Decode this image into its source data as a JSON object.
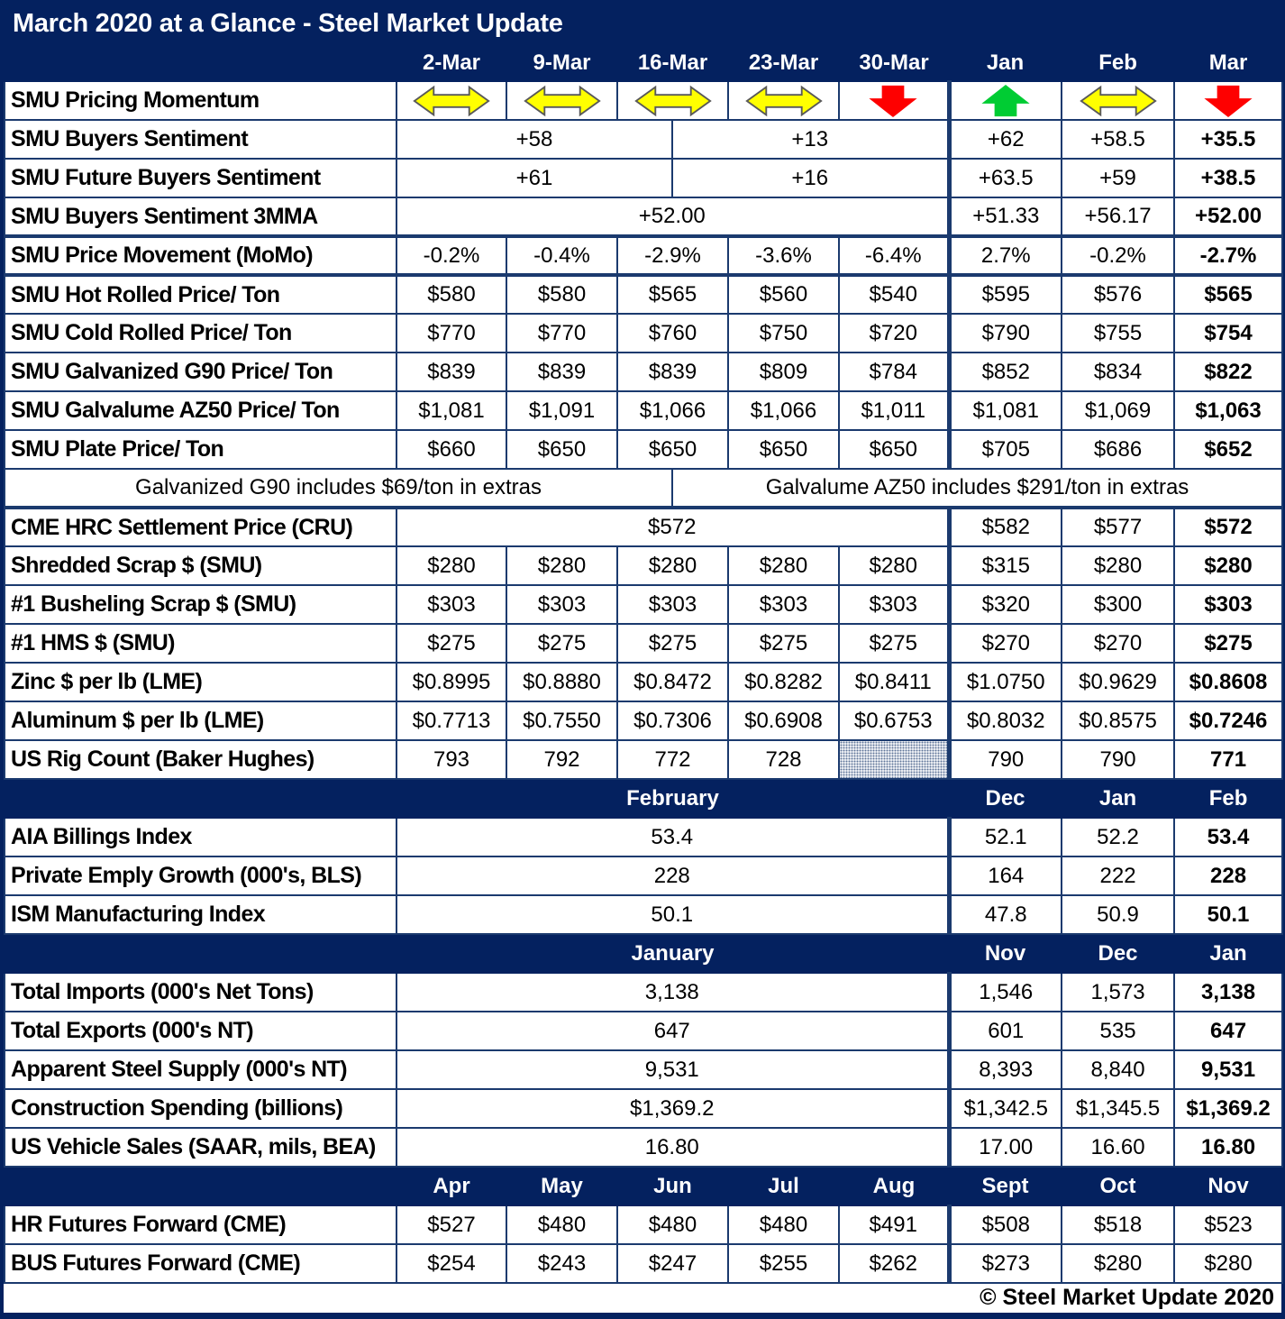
{
  "title": "March 2020 at a Glance - Steel Market Update",
  "footer_copyright": "© Steel Market Update 2020",
  "colors": {
    "navy_header": "#04215f",
    "gridline": "#1b3a6e",
    "arrow_yellow": "#ffff00",
    "arrow_yellow_outline": "#595959",
    "arrow_red": "#fe0000",
    "arrow_green": "#00cc33"
  },
  "icons": {
    "dd": "left-right-arrow-icon",
    "up": "up-arrow-icon",
    "dn": "down-arrow-icon",
    "hx": "hatched-empty-cell"
  },
  "columns": [
    "2-Mar",
    "9-Mar",
    "16-Mar",
    "23-Mar",
    "30-Mar",
    "Jan",
    "Feb",
    "Mar"
  ],
  "rows": [
    {
      "label": "SMU Pricing Momentum",
      "cells": [
        {
          "k": "dd",
          "s": 2
        },
        {
          "k": "dd",
          "s": 2
        },
        {
          "k": "dd",
          "s": 2
        },
        {
          "k": "dd",
          "s": 2
        },
        {
          "k": "dn",
          "s": 2
        },
        {
          "k": "up",
          "s": 2,
          "m": 1
        },
        {
          "k": "dd",
          "s": 2
        },
        {
          "k": "dn",
          "s": 2
        }
      ]
    },
    {
      "label": "SMU Buyers Sentiment",
      "cells": [
        {
          "t": "+58",
          "s": 5
        },
        {
          "t": "+13",
          "s": 5
        },
        {
          "t": "+62",
          "s": 2,
          "m": 1
        },
        {
          "t": "+58.5",
          "s": 2
        },
        {
          "t": "+35.5",
          "s": 2,
          "b": 1
        }
      ]
    },
    {
      "label": "SMU Future Buyers Sentiment",
      "cells": [
        {
          "t": "+61",
          "s": 5
        },
        {
          "t": "+16",
          "s": 5
        },
        {
          "t": "+63.5",
          "s": 2,
          "m": 1
        },
        {
          "t": "+59",
          "s": 2
        },
        {
          "t": "+38.5",
          "s": 2,
          "b": 1
        }
      ]
    },
    {
      "label": "SMU Buyers Sentiment 3MMA",
      "cells": [
        {
          "t": "+52.00",
          "s": 10
        },
        {
          "t": "+51.33",
          "s": 2,
          "m": 1
        },
        {
          "t": "+56.17",
          "s": 2
        },
        {
          "t": "+52.00",
          "s": 2,
          "b": 1
        }
      ]
    },
    {
      "label": "SMU Price Movement (MoMo)",
      "thickTop": true,
      "cells": [
        {
          "t": "-0.2%",
          "s": 2
        },
        {
          "t": "-0.4%",
          "s": 2
        },
        {
          "t": "-2.9%",
          "s": 2
        },
        {
          "t": "-3.6%",
          "s": 2
        },
        {
          "t": "-6.4%",
          "s": 2
        },
        {
          "t": "2.7%",
          "s": 2,
          "m": 1
        },
        {
          "t": "-0.2%",
          "s": 2
        },
        {
          "t": "-2.7%",
          "s": 2,
          "b": 1
        }
      ]
    },
    {
      "label": "SMU Hot Rolled Price/ Ton",
      "thickTop": true,
      "cells": [
        {
          "t": "$580",
          "s": 2
        },
        {
          "t": "$580",
          "s": 2
        },
        {
          "t": "$565",
          "s": 2
        },
        {
          "t": "$560",
          "s": 2
        },
        {
          "t": "$540",
          "s": 2
        },
        {
          "t": "$595",
          "s": 2,
          "m": 1
        },
        {
          "t": "$576",
          "s": 2
        },
        {
          "t": "$565",
          "s": 2,
          "b": 1
        }
      ]
    },
    {
      "label": "SMU Cold Rolled Price/ Ton",
      "cells": [
        {
          "t": "$770",
          "s": 2
        },
        {
          "t": "$770",
          "s": 2
        },
        {
          "t": "$760",
          "s": 2
        },
        {
          "t": "$750",
          "s": 2
        },
        {
          "t": "$720",
          "s": 2
        },
        {
          "t": "$790",
          "s": 2,
          "m": 1
        },
        {
          "t": "$755",
          "s": 2
        },
        {
          "t": "$754",
          "s": 2,
          "b": 1
        }
      ]
    },
    {
      "label": "SMU Galvanized G90 Price/ Ton",
      "cells": [
        {
          "t": "$839",
          "s": 2
        },
        {
          "t": "$839",
          "s": 2
        },
        {
          "t": "$839",
          "s": 2
        },
        {
          "t": "$809",
          "s": 2
        },
        {
          "t": "$784",
          "s": 2
        },
        {
          "t": "$852",
          "s": 2,
          "m": 1
        },
        {
          "t": "$834",
          "s": 2
        },
        {
          "t": "$822",
          "s": 2,
          "b": 1
        }
      ]
    },
    {
      "label": "SMU Galvalume AZ50 Price/ Ton",
      "cells": [
        {
          "t": "$1,081",
          "s": 2
        },
        {
          "t": "$1,091",
          "s": 2
        },
        {
          "t": "$1,066",
          "s": 2
        },
        {
          "t": "$1,066",
          "s": 2
        },
        {
          "t": "$1,011",
          "s": 2
        },
        {
          "t": "$1,081",
          "s": 2,
          "m": 1
        },
        {
          "t": "$1,069",
          "s": 2
        },
        {
          "t": "$1,063",
          "s": 2,
          "b": 1
        }
      ]
    },
    {
      "label": "SMU Plate Price/ Ton",
      "cells": [
        {
          "t": "$660",
          "s": 2
        },
        {
          "t": "$650",
          "s": 2
        },
        {
          "t": "$650",
          "s": 2
        },
        {
          "t": "$650",
          "s": 2
        },
        {
          "t": "$650",
          "s": 2
        },
        {
          "t": "$705",
          "s": 2,
          "m": 1
        },
        {
          "t": "$686",
          "s": 2
        },
        {
          "t": "$652",
          "s": 2,
          "b": 1
        }
      ]
    },
    {
      "type": "note",
      "cells": [
        {
          "t": "Galvanized G90 includes $69/ton in extras",
          "s": 6
        },
        {
          "t": "Galvalume AZ50 includes $291/ton in extras",
          "s": 11
        }
      ]
    },
    {
      "label": "CME HRC Settlement Price (CRU)",
      "thickTop": true,
      "cells": [
        {
          "t": "$572",
          "s": 10
        },
        {
          "t": "$582",
          "s": 2,
          "m": 1
        },
        {
          "t": "$577",
          "s": 2
        },
        {
          "t": "$572",
          "s": 2,
          "b": 1
        }
      ]
    },
    {
      "label": "Shredded Scrap $ (SMU)",
      "cells": [
        {
          "t": "$280",
          "s": 2
        },
        {
          "t": "$280",
          "s": 2
        },
        {
          "t": "$280",
          "s": 2
        },
        {
          "t": "$280",
          "s": 2
        },
        {
          "t": "$280",
          "s": 2
        },
        {
          "t": "$315",
          "s": 2,
          "m": 1
        },
        {
          "t": "$280",
          "s": 2
        },
        {
          "t": "$280",
          "s": 2,
          "b": 1
        }
      ]
    },
    {
      "label": "#1 Busheling Scrap $ (SMU)",
      "cells": [
        {
          "t": "$303",
          "s": 2
        },
        {
          "t": "$303",
          "s": 2
        },
        {
          "t": "$303",
          "s": 2
        },
        {
          "t": "$303",
          "s": 2
        },
        {
          "t": "$303",
          "s": 2
        },
        {
          "t": "$320",
          "s": 2,
          "m": 1
        },
        {
          "t": "$300",
          "s": 2
        },
        {
          "t": "$303",
          "s": 2,
          "b": 1
        }
      ]
    },
    {
      "label": "#1 HMS $ (SMU)",
      "cells": [
        {
          "t": "$275",
          "s": 2
        },
        {
          "t": "$275",
          "s": 2
        },
        {
          "t": "$275",
          "s": 2
        },
        {
          "t": "$275",
          "s": 2
        },
        {
          "t": "$275",
          "s": 2
        },
        {
          "t": "$270",
          "s": 2,
          "m": 1
        },
        {
          "t": "$270",
          "s": 2
        },
        {
          "t": "$275",
          "s": 2,
          "b": 1
        }
      ]
    },
    {
      "label": "Zinc $ per lb (LME)",
      "cells": [
        {
          "t": "$0.8995",
          "s": 2
        },
        {
          "t": "$0.8880",
          "s": 2
        },
        {
          "t": "$0.8472",
          "s": 2
        },
        {
          "t": "$0.8282",
          "s": 2
        },
        {
          "t": "$0.8411",
          "s": 2
        },
        {
          "t": "$1.0750",
          "s": 2,
          "m": 1
        },
        {
          "t": "$0.9629",
          "s": 2
        },
        {
          "t": "$0.8608",
          "s": 2,
          "b": 1
        }
      ]
    },
    {
      "label": "Aluminum $ per lb (LME)",
      "cells": [
        {
          "t": "$0.7713",
          "s": 2
        },
        {
          "t": "$0.7550",
          "s": 2
        },
        {
          "t": "$0.7306",
          "s": 2
        },
        {
          "t": "$0.6908",
          "s": 2
        },
        {
          "t": "$0.6753",
          "s": 2
        },
        {
          "t": "$0.8032",
          "s": 2,
          "m": 1
        },
        {
          "t": "$0.8575",
          "s": 2
        },
        {
          "t": "$0.7246",
          "s": 2,
          "b": 1
        }
      ]
    },
    {
      "label": "US Rig Count (Baker Hughes)",
      "cells": [
        {
          "t": "793",
          "s": 2
        },
        {
          "t": "792",
          "s": 2
        },
        {
          "t": "772",
          "s": 2
        },
        {
          "t": "728",
          "s": 2
        },
        {
          "k": "hx",
          "s": 2
        },
        {
          "t": "790",
          "s": 2,
          "m": 1
        },
        {
          "t": "790",
          "s": 2
        },
        {
          "t": "771",
          "s": 2,
          "b": 1
        }
      ]
    },
    {
      "type": "sub",
      "cells": [
        {
          "t": "February",
          "s": 10
        },
        {
          "t": "Dec",
          "s": 2
        },
        {
          "t": "Jan",
          "s": 2
        },
        {
          "t": "Feb",
          "s": 2
        }
      ]
    },
    {
      "label": "AIA Billings Index",
      "cells": [
        {
          "t": "53.4",
          "s": 10
        },
        {
          "t": "52.1",
          "s": 2,
          "m": 1
        },
        {
          "t": "52.2",
          "s": 2
        },
        {
          "t": "53.4",
          "s": 2,
          "b": 1
        }
      ]
    },
    {
      "label": "Private Emply Growth (000's, BLS)",
      "cells": [
        {
          "t": "228",
          "s": 10
        },
        {
          "t": "164",
          "s": 2,
          "m": 1
        },
        {
          "t": "222",
          "s": 2
        },
        {
          "t": "228",
          "s": 2,
          "b": 1
        }
      ]
    },
    {
      "label": "ISM Manufacturing Index",
      "cells": [
        {
          "t": "50.1",
          "s": 10
        },
        {
          "t": "47.8",
          "s": 2,
          "m": 1
        },
        {
          "t": "50.9",
          "s": 2
        },
        {
          "t": "50.1",
          "s": 2,
          "b": 1
        }
      ]
    },
    {
      "type": "sub",
      "cells": [
        {
          "t": "January",
          "s": 10
        },
        {
          "t": "Nov",
          "s": 2
        },
        {
          "t": "Dec",
          "s": 2
        },
        {
          "t": "Jan",
          "s": 2
        }
      ]
    },
    {
      "label": "Total Imports (000's Net Tons)",
      "cells": [
        {
          "t": "3,138",
          "s": 10
        },
        {
          "t": "1,546",
          "s": 2,
          "m": 1
        },
        {
          "t": "1,573",
          "s": 2
        },
        {
          "t": "3,138",
          "s": 2,
          "b": 1
        }
      ]
    },
    {
      "label": "Total Exports (000's NT)",
      "cells": [
        {
          "t": "647",
          "s": 10
        },
        {
          "t": "601",
          "s": 2,
          "m": 1
        },
        {
          "t": "535",
          "s": 2
        },
        {
          "t": "647",
          "s": 2,
          "b": 1
        }
      ]
    },
    {
      "label": "Apparent Steel Supply (000's NT)",
      "cells": [
        {
          "t": "9,531",
          "s": 10
        },
        {
          "t": "8,393",
          "s": 2,
          "m": 1
        },
        {
          "t": "8,840",
          "s": 2
        },
        {
          "t": "9,531",
          "s": 2,
          "b": 1
        }
      ]
    },
    {
      "label": "Construction Spending (billions)",
      "cells": [
        {
          "t": "$1,369.2",
          "s": 10
        },
        {
          "t": "$1,342.5",
          "s": 2,
          "m": 1
        },
        {
          "t": "$1,345.5",
          "s": 2
        },
        {
          "t": "$1,369.2",
          "s": 2,
          "b": 1
        }
      ]
    },
    {
      "label": "US Vehicle Sales (SAAR, mils, BEA)",
      "cells": [
        {
          "t": "16.80",
          "s": 10
        },
        {
          "t": "17.00",
          "s": 2,
          "m": 1
        },
        {
          "t": "16.60",
          "s": 2
        },
        {
          "t": "16.80",
          "s": 2,
          "b": 1
        }
      ]
    },
    {
      "type": "sub",
      "cells": [
        {
          "t": "Apr",
          "s": 2
        },
        {
          "t": "May",
          "s": 2
        },
        {
          "t": "Jun",
          "s": 2
        },
        {
          "t": "Jul",
          "s": 2
        },
        {
          "t": "Aug",
          "s": 2
        },
        {
          "t": "Sept",
          "s": 2
        },
        {
          "t": "Oct",
          "s": 2
        },
        {
          "t": "Nov",
          "s": 2
        }
      ]
    },
    {
      "label": "HR Futures Forward (CME)",
      "cells": [
        {
          "t": "$527",
          "s": 2
        },
        {
          "t": "$480",
          "s": 2
        },
        {
          "t": "$480",
          "s": 2
        },
        {
          "t": "$480",
          "s": 2
        },
        {
          "t": "$491",
          "s": 2
        },
        {
          "t": "$508",
          "s": 2,
          "m": 1
        },
        {
          "t": "$518",
          "s": 2
        },
        {
          "t": "$523",
          "s": 2
        }
      ]
    },
    {
      "label": "BUS Futures Forward (CME)",
      "cells": [
        {
          "t": "$254",
          "s": 2
        },
        {
          "t": "$243",
          "s": 2
        },
        {
          "t": "$247",
          "s": 2
        },
        {
          "t": "$255",
          "s": 2
        },
        {
          "t": "$262",
          "s": 2
        },
        {
          "t": "$273",
          "s": 2,
          "m": 1
        },
        {
          "t": "$280",
          "s": 2
        },
        {
          "t": "$280",
          "s": 2
        }
      ]
    }
  ]
}
